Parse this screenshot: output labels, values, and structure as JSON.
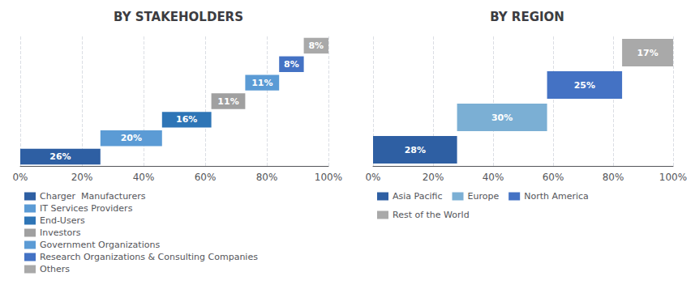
{
  "chart_data": [
    {
      "type": "bar",
      "orientation": "horizontal",
      "stacked": true,
      "title": "BY STAKEHOLDERS",
      "categories": [
        null,
        null,
        null,
        null,
        null,
        null,
        null
      ],
      "series": [
        {
          "name": "Charger  Manufacturers",
          "color": "#2E5FA3",
          "values": [
            26,
            null,
            null,
            null,
            null,
            null,
            null
          ],
          "value_labels": [
            "26%",
            null,
            null,
            null,
            null,
            null,
            null
          ]
        },
        {
          "name": "IT Services Providers",
          "color": "#5B9BD5",
          "values": [
            null,
            20,
            null,
            null,
            null,
            null,
            null
          ],
          "value_labels": [
            null,
            "20%",
            null,
            null,
            null,
            null,
            null
          ]
        },
        {
          "name": "End-Users",
          "color": "#2E75B6",
          "values": [
            null,
            null,
            16,
            null,
            null,
            null,
            null
          ],
          "value_labels": [
            null,
            null,
            "16%",
            null,
            null,
            null,
            null
          ]
        },
        {
          "name": "Investors",
          "color": "#A0A0A0",
          "values": [
            null,
            null,
            null,
            11,
            null,
            null,
            null
          ],
          "value_labels": [
            null,
            null,
            null,
            "11%",
            null,
            null,
            null
          ]
        },
        {
          "name": "Government Organizations",
          "color": "#5B9BD5",
          "values": [
            null,
            null,
            null,
            null,
            11,
            null,
            null
          ],
          "value_labels": [
            null,
            null,
            null,
            null,
            "11%",
            null,
            null
          ]
        },
        {
          "name": "Research Organizations & Consulting Companies",
          "color": "#4472C4",
          "values": [
            null,
            null,
            null,
            null,
            null,
            8,
            null
          ],
          "value_labels": [
            null,
            null,
            null,
            null,
            null,
            "8%",
            null
          ]
        },
        {
          "name": "Others",
          "color": "#A9A9A9",
          "values": [
            null,
            null,
            null,
            null,
            null,
            null,
            8
          ],
          "value_labels": [
            null,
            null,
            null,
            null,
            null,
            null,
            "8%"
          ]
        }
      ],
      "xlim": [
        0,
        100
      ],
      "xticks": [
        {
          "value": 0,
          "label": "0%"
        },
        {
          "value": 20,
          "label": "20%"
        },
        {
          "value": 40,
          "label": "40%"
        },
        {
          "value": 60,
          "label": "60%"
        },
        {
          "value": 80,
          "label": "80%"
        },
        {
          "value": 100,
          "label": "100%"
        }
      ],
      "grid": true,
      "data_labels": true,
      "tick_labels": "x",
      "legend": "bottom"
    },
    {
      "type": "bar",
      "orientation": "horizontal",
      "stacked": true,
      "title": "BY REGION",
      "categories": [
        null,
        null,
        null,
        null
      ],
      "series": [
        {
          "name": "Asia Pacific",
          "color": "#2E5FA3",
          "values": [
            28,
            null,
            null,
            null
          ],
          "value_labels": [
            "28%",
            null,
            null,
            null
          ]
        },
        {
          "name": "Europe",
          "color": "#7BAFD4",
          "values": [
            null,
            30,
            null,
            null
          ],
          "value_labels": [
            null,
            "30%",
            null,
            null
          ]
        },
        {
          "name": "North America",
          "color": "#4472C4",
          "values": [
            null,
            null,
            25,
            null
          ],
          "value_labels": [
            null,
            null,
            "25%",
            null
          ]
        },
        {
          "name": "Rest of the World",
          "color": "#A9A9A9",
          "values": [
            null,
            null,
            null,
            17
          ],
          "value_labels": [
            null,
            null,
            null,
            "17%"
          ]
        }
      ],
      "xlim": [
        0,
        100
      ],
      "xticks": [
        {
          "value": 0,
          "label": "0%"
        },
        {
          "value": 20,
          "label": "20%"
        },
        {
          "value": 40,
          "label": "40%"
        },
        {
          "value": 60,
          "label": "60%"
        },
        {
          "value": 80,
          "label": "80%"
        },
        {
          "value": 100,
          "label": "100%"
        }
      ],
      "grid": true,
      "data_labels": true,
      "tick_labels": "x",
      "legend": "bottom"
    }
  ]
}
